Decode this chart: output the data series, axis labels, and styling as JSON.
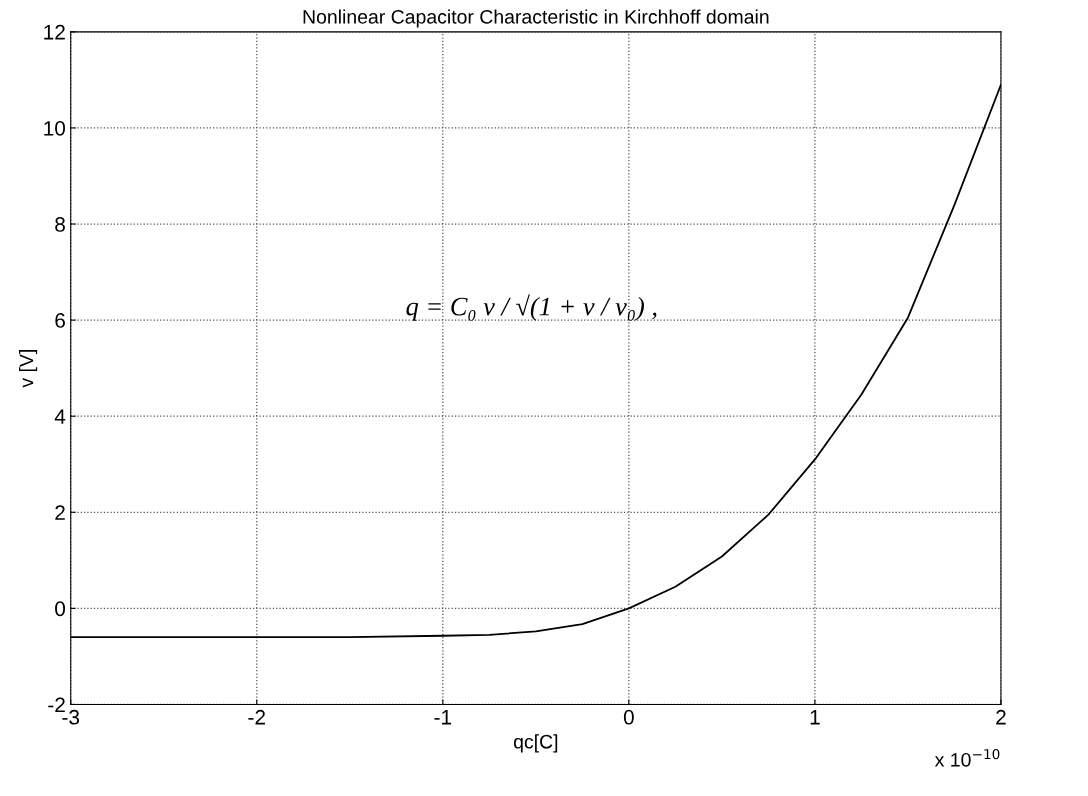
{
  "chart_data": {
    "type": "line",
    "title": "Nonlinear Capacitor Characteristic in Kirchhoff domain",
    "xlabel": "qc[C]",
    "ylabel": "v [V]",
    "x": [
      -3,
      -2,
      -1.5,
      -1,
      -0.75,
      -0.5,
      -0.25,
      0,
      0.25,
      0.5,
      0.75,
      1,
      1.25,
      1.5,
      1.75,
      2
    ],
    "series": [
      {
        "color": "#000000",
        "values": [
          -0.6,
          -0.6,
          -0.6,
          -0.57,
          -0.55,
          -0.48,
          -0.33,
          0,
          0.45,
          1.08,
          1.95,
          3.1,
          4.45,
          6.05,
          8.4,
          10.9
        ]
      }
    ],
    "xlim": [
      -3,
      2
    ],
    "xticks": [
      -3,
      -2,
      -1,
      0,
      1,
      2
    ],
    "ylim": [
      -2,
      12
    ],
    "yticks": [
      -2,
      0,
      2,
      4,
      6,
      8,
      10,
      12
    ],
    "grid": true,
    "line_style": "solid",
    "marker": "none",
    "annotations": [
      "q = C₀ v / √(1 + v / v₀) ,",
      "x 10$^{−10}$"
    ]
  }
}
